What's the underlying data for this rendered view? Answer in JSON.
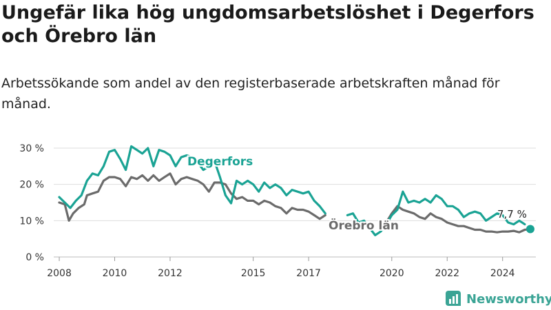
{
  "title": "Ungefär lika hög ungdomsarbetslöshet i Degerfors och Örebro län",
  "subtitle": "Arbetssökande som andel av den registerbaserade arbetskraften månad för månad.",
  "brand": "Newsworthy",
  "chart_data": {
    "type": "line",
    "ylim": [
      0,
      30
    ],
    "xlim": [
      2007.8,
      2025.2
    ],
    "y_ticks": [
      0,
      10,
      20,
      30
    ],
    "y_tick_labels": [
      "0 %",
      "10 %",
      "20 %",
      "30 %"
    ],
    "x_ticks": [
      2008,
      2010,
      2012,
      2015,
      2017,
      2020,
      2022,
      2024
    ],
    "x_tick_labels": [
      "2008",
      "2010",
      "2012",
      "2015",
      "2017",
      "2020",
      "2022",
      "2024"
    ],
    "grid": true,
    "end_label": "7,7 %",
    "colors": {
      "degerfors": "#1aa394",
      "orebro": "#6b6b6b",
      "grid": "#dddddd"
    },
    "series": [
      {
        "name": "Degerfors",
        "x": [
          2008.0,
          2008.2,
          2008.4,
          2008.6,
          2008.8,
          2009.0,
          2009.2,
          2009.4,
          2009.6,
          2009.8,
          2010.0,
          2010.2,
          2010.4,
          2010.6,
          2010.8,
          2011.0,
          2011.2,
          2011.4,
          2011.6,
          2011.8,
          2012.0,
          2012.2,
          2012.4,
          2012.6,
          2012.8,
          2013.0,
          2013.2,
          2013.4,
          2013.6,
          2013.8,
          2014.0,
          2014.2,
          2014.4,
          2014.6,
          2014.8,
          2015.0,
          2015.2,
          2015.4,
          2015.6,
          2015.8,
          2016.0,
          2016.2,
          2016.4,
          2016.6,
          2016.8,
          2017.0,
          2017.2,
          2017.4,
          2017.6,
          null,
          2018.4,
          2018.6,
          2018.8,
          2019.0,
          2019.2,
          2019.4,
          2019.6,
          2019.8,
          2020.0,
          2020.2,
          2020.4,
          2020.6,
          2020.8,
          2021.0,
          2021.2,
          2021.4,
          2021.6,
          2021.8,
          2022.0,
          2022.2,
          2022.4,
          2022.6,
          2022.8,
          2023.0,
          2023.2,
          2023.4,
          2023.6,
          2023.8,
          2024.0,
          2024.2,
          2024.4,
          2024.6,
          2024.8
        ],
        "values": [
          16.5,
          15.0,
          13.5,
          15.5,
          17.0,
          21.0,
          23.0,
          22.5,
          25.0,
          29.0,
          29.5,
          27.0,
          24.0,
          30.5,
          29.5,
          28.5,
          30.0,
          25.0,
          29.5,
          29.0,
          28.0,
          25.0,
          27.5,
          28.0,
          27.5,
          26.0,
          24.0,
          25.0,
          26.5,
          22.0,
          17.0,
          14.8,
          21.0,
          20.0,
          21.0,
          20.0,
          18.0,
          20.5,
          19.0,
          20.0,
          19.0,
          17.0,
          18.5,
          18.0,
          17.5,
          18.0,
          15.5,
          14.0,
          12.0,
          null,
          11.5,
          12.0,
          9.5,
          10.0,
          8.0,
          6.0,
          7.0,
          9.0,
          11.5,
          13.0,
          18.0,
          15.0,
          15.5,
          15.0,
          16.0,
          15.0,
          17.0,
          16.0,
          14.0,
          14.0,
          13.0,
          11.0,
          12.0,
          12.5,
          12.0,
          10.0,
          11.0,
          12.0,
          11.5,
          9.5,
          9.0,
          10.0,
          9.0
        ]
      },
      {
        "name": "Örebro län",
        "x": [
          2008.0,
          2008.2,
          2008.35,
          2008.5,
          2008.7,
          2008.9,
          2009.0,
          2009.2,
          2009.4,
          2009.6,
          2009.8,
          2010.0,
          2010.2,
          2010.4,
          2010.6,
          2010.8,
          2011.0,
          2011.2,
          2011.4,
          2011.6,
          2011.8,
          2012.0,
          2012.2,
          2012.4,
          2012.6,
          2012.8,
          2013.0,
          2013.2,
          2013.4,
          2013.6,
          2013.8,
          2014.0,
          2014.2,
          2014.4,
          2014.6,
          2014.8,
          2015.0,
          2015.2,
          2015.4,
          2015.6,
          2015.8,
          2016.0,
          2016.2,
          2016.4,
          2016.6,
          2016.8,
          2017.0,
          2017.2,
          2017.4,
          2017.6,
          null,
          2019.8,
          2020.0,
          2020.2,
          2020.4,
          2020.6,
          2020.8,
          2021.0,
          2021.2,
          2021.4,
          2021.6,
          2021.8,
          2022.0,
          2022.2,
          2022.4,
          2022.6,
          2022.8,
          2023.0,
          2023.2,
          2023.4,
          2023.6,
          2023.8,
          2024.0,
          2024.2,
          2024.4,
          2024.6,
          2024.8,
          2025.0
        ],
        "values": [
          15.0,
          14.5,
          10.0,
          12.0,
          13.5,
          14.5,
          17.0,
          17.5,
          18.0,
          21.0,
          22.0,
          22.0,
          21.5,
          19.5,
          22.0,
          21.5,
          22.5,
          21.0,
          22.5,
          21.0,
          22.0,
          23.0,
          20.0,
          21.5,
          22.0,
          21.5,
          21.0,
          20.0,
          18.0,
          20.5,
          20.5,
          20.0,
          17.5,
          16.0,
          16.5,
          15.5,
          15.5,
          14.5,
          15.5,
          15.0,
          14.0,
          13.5,
          12.0,
          13.5,
          13.0,
          13.0,
          12.5,
          11.5,
          10.5,
          11.5,
          null,
          9.5,
          12.0,
          14.0,
          13.0,
          12.5,
          12.0,
          11.0,
          10.5,
          12.0,
          11.0,
          10.5,
          9.5,
          9.0,
          8.5,
          8.5,
          8.0,
          7.5,
          7.5,
          7.0,
          7.0,
          6.8,
          7.0,
          7.0,
          7.2,
          6.8,
          7.5,
          7.7
        ]
      }
    ]
  }
}
